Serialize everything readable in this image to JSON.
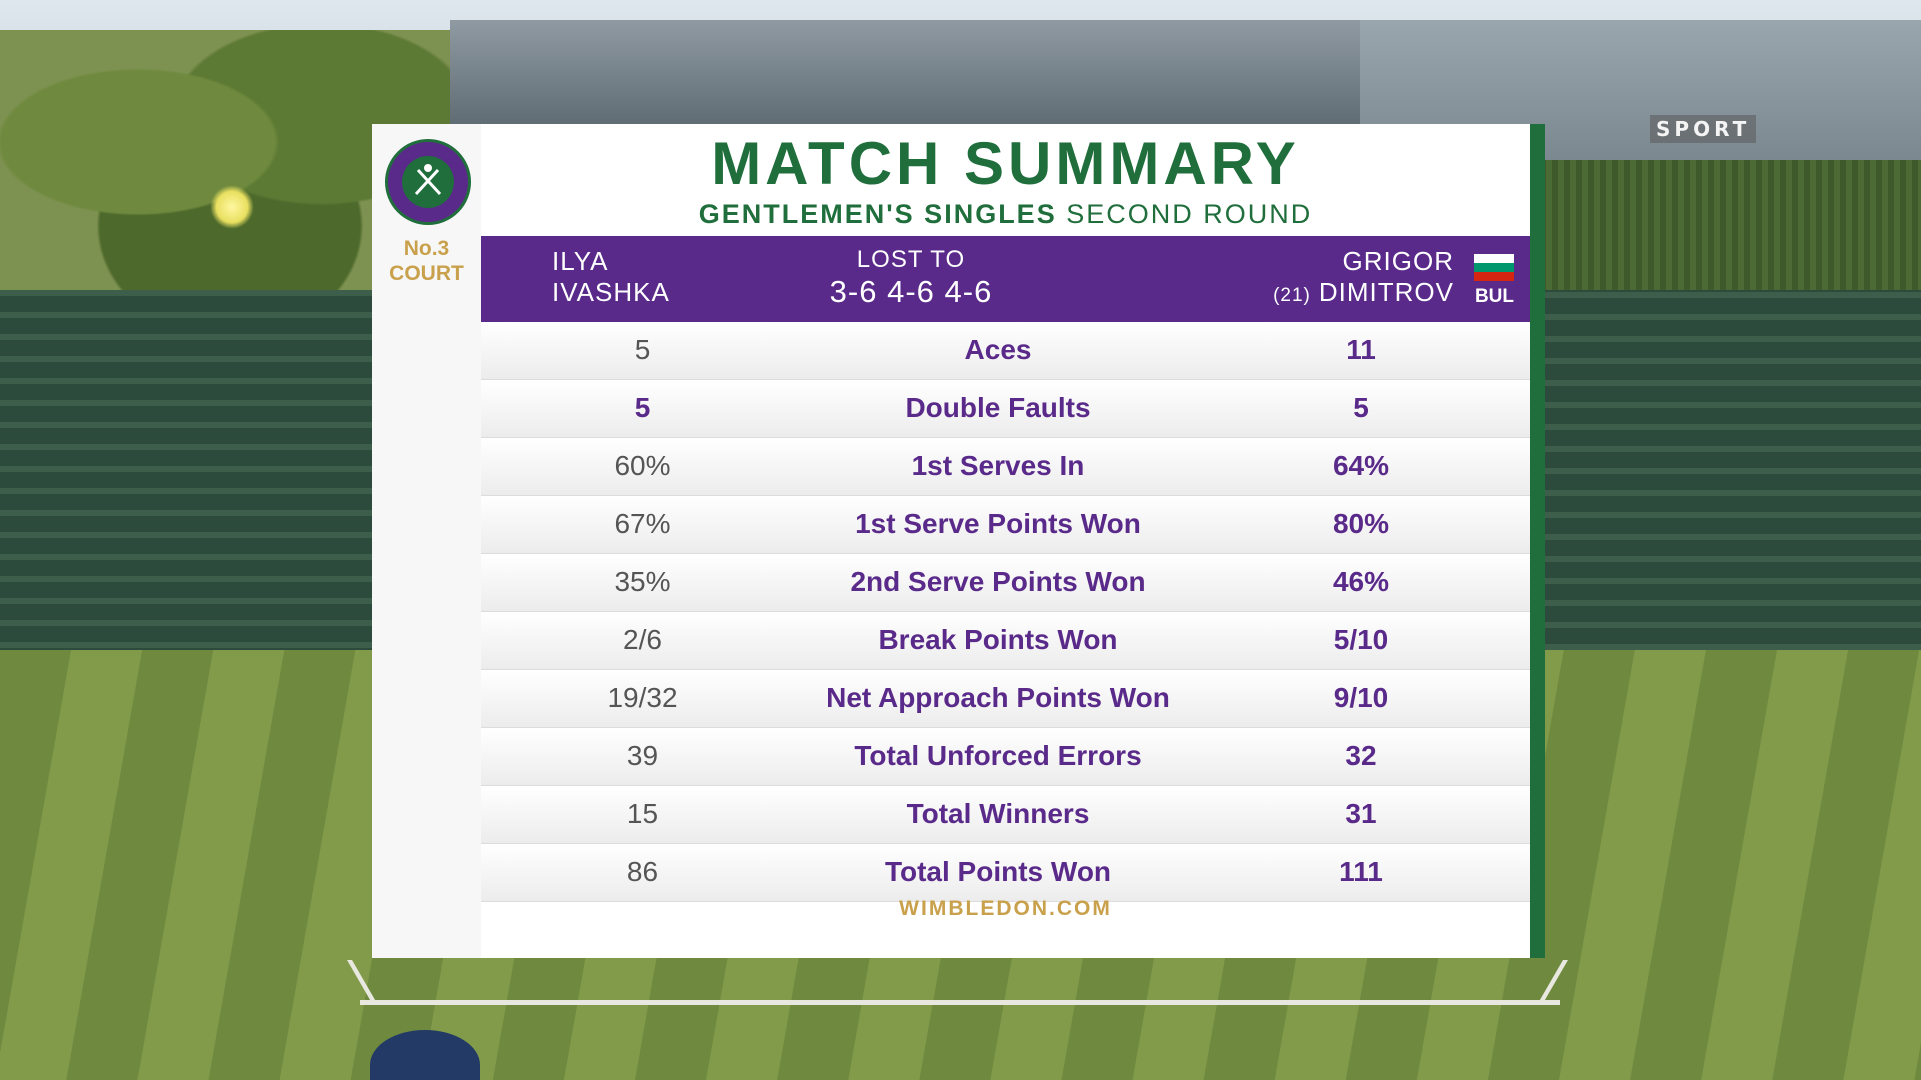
{
  "broadcaster": "SPORT",
  "court": {
    "line1": "No.3",
    "line2": "COURT"
  },
  "title": "MATCH SUMMARY",
  "subtitle": {
    "event": "GENTLEMEN'S SINGLES",
    "round": "SECOND ROUND"
  },
  "player1": {
    "first": "ILYA",
    "last": "IVASHKA"
  },
  "result": {
    "text": "LOST TO",
    "score": "3-6 4-6 4-6"
  },
  "player2": {
    "first": "GRIGOR",
    "seed": "(21)",
    "last": "DIMITROV",
    "nation": "BUL",
    "flag_colors": [
      "#ffffff",
      "#00966e",
      "#d62612"
    ]
  },
  "stats": [
    {
      "label": "Aces",
      "p1": "5",
      "p2": "11"
    },
    {
      "label": "Double Faults",
      "p1": "5",
      "p2": "5"
    },
    {
      "label": "1st Serves In",
      "p1": "60%",
      "p2": "64%"
    },
    {
      "label": "1st Serve Points Won",
      "p1": "67%",
      "p2": "80%"
    },
    {
      "label": "2nd Serve Points Won",
      "p1": "35%",
      "p2": "46%"
    },
    {
      "label": "Break Points Won",
      "p1": "2/6",
      "p2": "5/10"
    },
    {
      "label": "Net Approach Points Won",
      "p1": "19/32",
      "p2": "9/10"
    },
    {
      "label": "Total Unforced Errors",
      "p1": "39",
      "p2": "32"
    },
    {
      "label": "Total Winners",
      "p1": "15",
      "p2": "31"
    },
    {
      "label": "Total Points Won",
      "p1": "86",
      "p2": "111"
    }
  ],
  "footer": "WIMBLEDON.COM",
  "colors": {
    "purple": "#5a2a8a",
    "green": "#1f6e3b",
    "gold": "#c9a14c"
  }
}
